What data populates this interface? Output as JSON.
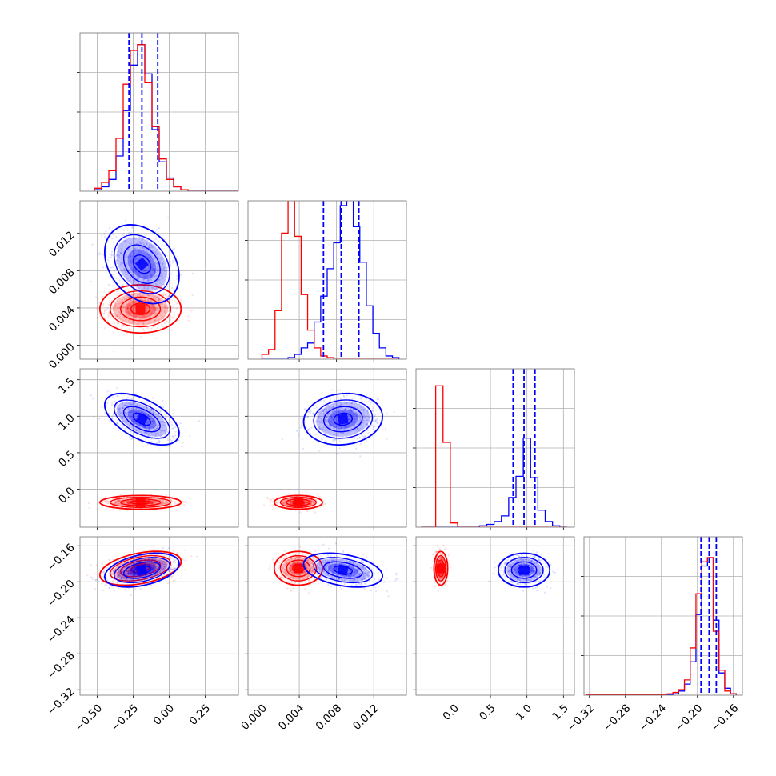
{
  "chart_data": {
    "type": "corner",
    "grid": true,
    "legend": "none",
    "colors": {
      "model_a": "#0000ff",
      "model_b": "#ff0000",
      "quantile_lines": "#0000ff",
      "grid": "#b0b0b0",
      "frame": "#808080"
    },
    "parameters": [
      {
        "range": [
          -0.62,
          0.48
        ],
        "ticks": [
          -0.5,
          -0.25,
          0.0,
          0.25
        ],
        "tick_labels": [
          "−0.50",
          "−0.25",
          "0.00",
          "0.25"
        ]
      },
      {
        "range": [
          -0.0015,
          0.0155
        ],
        "ticks": [
          0.0,
          0.004,
          0.008,
          0.012
        ],
        "tick_labels": [
          "0.000",
          "0.004",
          "0.008",
          "0.012"
        ]
      },
      {
        "range": [
          -0.52,
          1.65
        ],
        "ticks": [
          0.0,
          0.5,
          1.0,
          1.5
        ],
        "tick_labels": [
          "0.0",
          "0.5",
          "1.0",
          "1.5"
        ]
      },
      {
        "range": [
          -0.326,
          -0.15
        ],
        "ticks": [
          -0.32,
          -0.28,
          -0.24,
          -0.2,
          -0.16
        ],
        "tick_labels": [
          "−0.32",
          "−0.28",
          "−0.24",
          "−0.20",
          "−0.16"
        ]
      }
    ],
    "blue": {
      "mean": [
        -0.19,
        0.0087,
        0.96,
        -0.187
      ],
      "sd": [
        0.11,
        0.0018,
        0.15,
        0.008
      ],
      "corr": [
        [
          0,
          1,
          -0.3
        ],
        [
          0,
          2,
          -0.55
        ],
        [
          0,
          3,
          0.4
        ],
        [
          1,
          2,
          0.1
        ],
        [
          1,
          3,
          -0.35
        ]
      ],
      "quantile_lines": [
        [
          -0.28,
          -0.19,
          -0.08
        ],
        [
          0.0066,
          0.0085,
          0.0104
        ],
        [
          0.81,
          0.96,
          1.11
        ],
        [
          -0.196,
          -0.187,
          -0.179
        ]
      ]
    },
    "red": {
      "mean": [
        -0.2,
        0.0039,
        -0.18,
        -0.185
      ],
      "sd": [
        0.12,
        0.0011,
        0.04,
        0.008
      ],
      "corr": [
        [
          0,
          3,
          0.4
        ]
      ]
    },
    "histograms": [
      {
        "edges": [
          -0.52,
          -0.47,
          -0.42,
          -0.37,
          -0.32,
          -0.27,
          -0.22,
          -0.17,
          -0.12,
          -0.07,
          -0.02,
          0.03,
          0.08,
          0.13,
          0.18,
          0.23,
          0.28,
          0.33,
          0.38,
          0.43,
          0.48
        ],
        "blue": [
          0.01,
          0.03,
          0.08,
          0.24,
          0.55,
          0.86,
          1.0,
          0.8,
          0.42,
          0.2,
          0.09,
          0.03,
          0.01,
          0,
          0,
          0,
          0,
          0,
          0,
          0
        ],
        "red": [
          0.02,
          0.06,
          0.14,
          0.36,
          0.73,
          0.96,
          1.0,
          0.74,
          0.44,
          0.22,
          0.08,
          0.03,
          0.01,
          0,
          0,
          0,
          0,
          0,
          0,
          0
        ],
        "ymax": 1.08
      },
      {
        "edges": [
          0.0,
          0.0007,
          0.0014,
          0.0021,
          0.0028,
          0.0035,
          0.0042,
          0.0049,
          0.0056,
          0.0063,
          0.007,
          0.0077,
          0.0084,
          0.0091,
          0.0098,
          0.0105,
          0.0112,
          0.0119,
          0.0126,
          0.0133,
          0.014,
          0.0147
        ],
        "blue": [
          0,
          0,
          0,
          0,
          0.01,
          0.03,
          0.07,
          0.1,
          0.23,
          0.39,
          0.56,
          0.72,
          0.95,
          1.0,
          0.82,
          0.6,
          0.33,
          0.16,
          0.07,
          0.02,
          0.01
        ],
        "red": [
          0.03,
          0.06,
          0.3,
          0.78,
          1.0,
          0.76,
          0.4,
          0.18,
          0.07,
          0.02,
          0.01,
          0,
          0,
          0,
          0,
          0,
          0,
          0,
          0,
          0,
          0
        ],
        "ymax": 0.98
      },
      {
        "edges": [
          -0.45,
          -0.35,
          -0.25,
          -0.15,
          -0.05,
          0.05,
          0.15,
          0.25,
          0.35,
          0.45,
          0.55,
          0.65,
          0.75,
          0.85,
          0.95,
          1.05,
          1.15,
          1.25,
          1.35,
          1.45,
          1.55
        ],
        "blue": [
          0,
          0,
          0,
          0,
          0,
          0,
          0,
          0,
          0.01,
          0.02,
          0.04,
          0.08,
          0.21,
          0.36,
          0.63,
          0.35,
          0.12,
          0.04,
          0.01,
          0
        ],
        "red": [
          0,
          0,
          1.0,
          0.6,
          0.03,
          0,
          0,
          0,
          0,
          0,
          0,
          0,
          0,
          0,
          0,
          0,
          0,
          0,
          0,
          0
        ],
        "ymax": 1.12
      },
      {
        "edges": [
          -0.3232,
          -0.3168,
          -0.3104,
          -0.304,
          -0.2976,
          -0.2912,
          -0.2848,
          -0.2784,
          -0.272,
          -0.2656,
          -0.2592,
          -0.2528,
          -0.2464,
          -0.24,
          -0.2336,
          -0.2272,
          -0.2208,
          -0.2144,
          -0.208,
          -0.2016,
          -0.1952,
          -0.1888,
          -0.1824,
          -0.176,
          -0.1696,
          -0.1632,
          -0.1568
        ],
        "blue": [
          0,
          0,
          0,
          0,
          0,
          0,
          0,
          0,
          0,
          0,
          0,
          0,
          0,
          0,
          0.005,
          0.01,
          0.03,
          0.08,
          0.24,
          0.58,
          0.93,
          0.99,
          0.54,
          0.16,
          0.05,
          0.01
        ],
        "red": [
          0.005,
          0.005,
          0.005,
          0.005,
          0.005,
          0.005,
          0.005,
          0.005,
          0.005,
          0.005,
          0.005,
          0.005,
          0.005,
          0.005,
          0.01,
          0.02,
          0.04,
          0.11,
          0.34,
          0.73,
          0.96,
          0.99,
          0.46,
          0.18,
          0.03,
          0.01
        ],
        "ymax": 1.14
      }
    ]
  }
}
